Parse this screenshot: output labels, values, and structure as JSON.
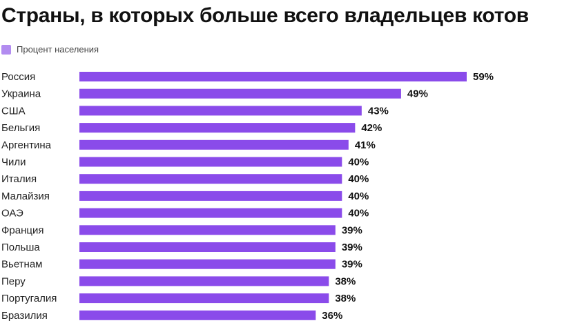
{
  "chart_data": {
    "type": "bar",
    "orientation": "horizontal",
    "title": "Страны, в которых больше всего владельцев котов",
    "legend": {
      "position": "top-left",
      "entries": [
        "Процент населения"
      ]
    },
    "unit": "%",
    "categories": [
      "Россия",
      "Украина",
      "США",
      "Бельгия",
      "Аргентина",
      "Чили",
      "Италия",
      "Малайзия",
      "ОАЭ",
      "Франция",
      "Польша",
      "Вьетнам",
      "Перу",
      "Португалия",
      "Бразилия"
    ],
    "series": [
      {
        "name": "Процент населения",
        "values": [
          59,
          49,
          43,
          42,
          41,
          40,
          40,
          40,
          40,
          39,
          39,
          39,
          38,
          38,
          36
        ]
      }
    ],
    "value_labels": [
      "59%",
      "49%",
      "43%",
      "42%",
      "41%",
      "40%",
      "40%",
      "40%",
      "40%",
      "39%",
      "39%",
      "39%",
      "38%",
      "38%",
      "36%"
    ],
    "xlim": [
      0,
      59
    ],
    "grid": false,
    "colors": {
      "bar": "#8a4bea",
      "legend_swatch": "#b28cf0"
    }
  }
}
